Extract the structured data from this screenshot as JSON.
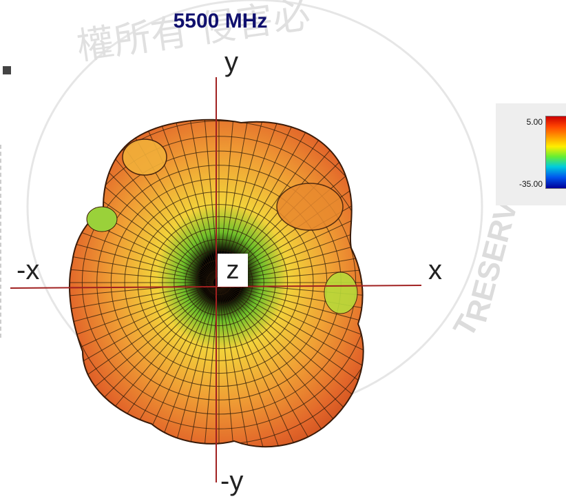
{
  "title": "5500 MHz",
  "title_color": "#10106e",
  "axes": {
    "y": "y",
    "neg_y": "-y",
    "x": "x",
    "neg_x": "-x",
    "z": "z",
    "color": "#a02020"
  },
  "legend": {
    "max_label": "5.00",
    "min_label": "-35.00"
  },
  "watermark": {
    "top_text": "權所有 侵害必",
    "side_text": "RESERVED.",
    "side_text_lower": "T"
  },
  "colors": {
    "pattern_outer": "#e0661f",
    "pattern_mid": "#f3b13a",
    "pattern_inner": "#9ad13a",
    "pattern_core": "#000000",
    "mesh": "#2a1a0a"
  }
}
